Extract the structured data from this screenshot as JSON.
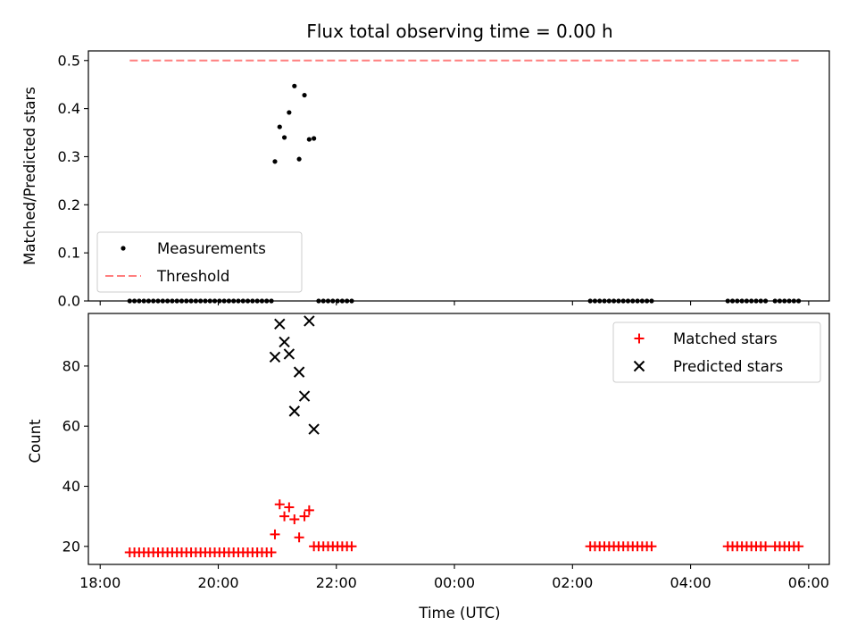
{
  "chart_data": [
    {
      "type": "scatter",
      "title": "Flux total observing time = 0.00 h",
      "xlabel": "",
      "ylabel": "Matched/Predicted stars",
      "xlim": [
        -0.2,
        12.35
      ],
      "ylim": [
        0.0,
        0.52
      ],
      "x_ticks": [
        0,
        2,
        4,
        6,
        8,
        10,
        12
      ],
      "y_ticks": [
        0.0,
        0.1,
        0.2,
        0.3,
        0.4,
        0.5
      ],
      "y_tick_labels": [
        "0.0",
        "0.1",
        "0.2",
        "0.3",
        "0.4",
        "0.5"
      ],
      "legend_position": "lower-left",
      "series": [
        {
          "name": "Measurements",
          "marker": "dot",
          "color": "#000000",
          "points": [
            [
              0.5,
              0
            ],
            [
              0.58,
              0
            ],
            [
              0.66,
              0
            ],
            [
              0.74,
              0
            ],
            [
              0.82,
              0
            ],
            [
              0.9,
              0
            ],
            [
              0.98,
              0
            ],
            [
              1.06,
              0
            ],
            [
              1.14,
              0
            ],
            [
              1.22,
              0
            ],
            [
              1.3,
              0
            ],
            [
              1.38,
              0
            ],
            [
              1.46,
              0
            ],
            [
              1.54,
              0
            ],
            [
              1.62,
              0
            ],
            [
              1.7,
              0
            ],
            [
              1.78,
              0
            ],
            [
              1.86,
              0
            ],
            [
              1.94,
              0
            ],
            [
              2.02,
              0
            ],
            [
              2.1,
              0
            ],
            [
              2.18,
              0
            ],
            [
              2.26,
              0
            ],
            [
              2.34,
              0
            ],
            [
              2.42,
              0
            ],
            [
              2.5,
              0
            ],
            [
              2.58,
              0
            ],
            [
              2.66,
              0
            ],
            [
              2.74,
              0
            ],
            [
              2.82,
              0
            ],
            [
              2.9,
              0
            ],
            [
              2.96,
              0.29
            ],
            [
              3.04,
              0.362
            ],
            [
              3.12,
              0.34
            ],
            [
              3.2,
              0.392
            ],
            [
              3.29,
              0.447
            ],
            [
              3.37,
              0.295
            ],
            [
              3.46,
              0.428
            ],
            [
              3.54,
              0.336
            ],
            [
              3.62,
              0.338
            ],
            [
              3.7,
              0
            ],
            [
              3.78,
              0
            ],
            [
              3.86,
              0
            ],
            [
              3.94,
              0
            ],
            [
              4.02,
              0
            ],
            [
              4.1,
              0
            ],
            [
              4.18,
              0
            ],
            [
              4.26,
              0
            ],
            [
              8.3,
              0
            ],
            [
              8.38,
              0
            ],
            [
              8.46,
              0
            ],
            [
              8.54,
              0
            ],
            [
              8.62,
              0
            ],
            [
              8.7,
              0
            ],
            [
              8.78,
              0
            ],
            [
              8.86,
              0
            ],
            [
              8.94,
              0
            ],
            [
              9.02,
              0
            ],
            [
              9.1,
              0
            ],
            [
              9.18,
              0
            ],
            [
              9.26,
              0
            ],
            [
              9.34,
              0
            ],
            [
              10.63,
              0
            ],
            [
              10.71,
              0
            ],
            [
              10.79,
              0
            ],
            [
              10.87,
              0
            ],
            [
              10.95,
              0
            ],
            [
              11.03,
              0
            ],
            [
              11.11,
              0
            ],
            [
              11.19,
              0
            ],
            [
              11.27,
              0
            ],
            [
              11.43,
              0
            ],
            [
              11.51,
              0
            ],
            [
              11.59,
              0
            ],
            [
              11.67,
              0
            ],
            [
              11.75,
              0
            ],
            [
              11.83,
              0
            ]
          ]
        },
        {
          "name": "Threshold",
          "marker": "dashed-line",
          "color": "#ff7f7f",
          "points": [
            [
              0.5,
              0.5
            ],
            [
              11.83,
              0.5
            ]
          ]
        }
      ]
    },
    {
      "type": "scatter",
      "title": "",
      "xlabel": "Time (UTC)",
      "ylabel": "Count",
      "xlim": [
        -0.2,
        12.35
      ],
      "ylim": [
        14,
        97.5
      ],
      "x_ticks": [
        0,
        2,
        4,
        6,
        8,
        10,
        12
      ],
      "x_tick_labels": [
        "18:00",
        "20:00",
        "22:00",
        "00:00",
        "02:00",
        "04:00",
        "06:00"
      ],
      "y_ticks": [
        20,
        40,
        60,
        80
      ],
      "y_tick_labels": [
        "20",
        "40",
        "60",
        "80"
      ],
      "legend_position": "top-right",
      "series": [
        {
          "name": "Matched stars",
          "marker": "plus",
          "color": "#ff0000",
          "points": [
            [
              0.5,
              18
            ],
            [
              0.58,
              18
            ],
            [
              0.66,
              18
            ],
            [
              0.74,
              18
            ],
            [
              0.82,
              18
            ],
            [
              0.9,
              18
            ],
            [
              0.98,
              18
            ],
            [
              1.06,
              18
            ],
            [
              1.14,
              18
            ],
            [
              1.22,
              18
            ],
            [
              1.3,
              18
            ],
            [
              1.38,
              18
            ],
            [
              1.46,
              18
            ],
            [
              1.54,
              18
            ],
            [
              1.62,
              18
            ],
            [
              1.7,
              18
            ],
            [
              1.78,
              18
            ],
            [
              1.86,
              18
            ],
            [
              1.94,
              18
            ],
            [
              2.02,
              18
            ],
            [
              2.1,
              18
            ],
            [
              2.18,
              18
            ],
            [
              2.26,
              18
            ],
            [
              2.34,
              18
            ],
            [
              2.42,
              18
            ],
            [
              2.5,
              18
            ],
            [
              2.58,
              18
            ],
            [
              2.66,
              18
            ],
            [
              2.74,
              18
            ],
            [
              2.82,
              18
            ],
            [
              2.9,
              18
            ],
            [
              2.96,
              24
            ],
            [
              3.04,
              34
            ],
            [
              3.12,
              30
            ],
            [
              3.2,
              33
            ],
            [
              3.29,
              29
            ],
            [
              3.37,
              23
            ],
            [
              3.46,
              30
            ],
            [
              3.54,
              32
            ],
            [
              3.62,
              20
            ],
            [
              3.7,
              20
            ],
            [
              3.78,
              20
            ],
            [
              3.86,
              20
            ],
            [
              3.94,
              20
            ],
            [
              4.02,
              20
            ],
            [
              4.1,
              20
            ],
            [
              4.18,
              20
            ],
            [
              4.26,
              20
            ],
            [
              8.3,
              20
            ],
            [
              8.38,
              20
            ],
            [
              8.46,
              20
            ],
            [
              8.54,
              20
            ],
            [
              8.62,
              20
            ],
            [
              8.7,
              20
            ],
            [
              8.78,
              20
            ],
            [
              8.86,
              20
            ],
            [
              8.94,
              20
            ],
            [
              9.02,
              20
            ],
            [
              9.1,
              20
            ],
            [
              9.18,
              20
            ],
            [
              9.26,
              20
            ],
            [
              9.34,
              20
            ],
            [
              10.63,
              20
            ],
            [
              10.71,
              20
            ],
            [
              10.79,
              20
            ],
            [
              10.87,
              20
            ],
            [
              10.95,
              20
            ],
            [
              11.03,
              20
            ],
            [
              11.11,
              20
            ],
            [
              11.19,
              20
            ],
            [
              11.27,
              20
            ],
            [
              11.43,
              20
            ],
            [
              11.51,
              20
            ],
            [
              11.59,
              20
            ],
            [
              11.67,
              20
            ],
            [
              11.75,
              20
            ],
            [
              11.83,
              20
            ]
          ]
        },
        {
          "name": "Predicted stars",
          "marker": "x",
          "color": "#000000",
          "points": [
            [
              2.96,
              83
            ],
            [
              3.04,
              94
            ],
            [
              3.12,
              88
            ],
            [
              3.2,
              84
            ],
            [
              3.29,
              65
            ],
            [
              3.37,
              78
            ],
            [
              3.46,
              70
            ],
            [
              3.54,
              95
            ],
            [
              3.62,
              59
            ]
          ]
        }
      ]
    }
  ]
}
